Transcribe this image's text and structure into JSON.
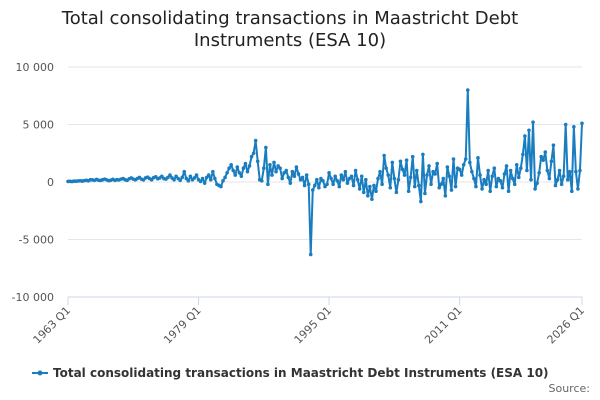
{
  "chart_data": {
    "type": "line",
    "title": "Total consolidating transactions in Maastricht Debt Instruments (ESA 10)",
    "source": "Source:",
    "categories": [
      "1963 Q1",
      null,
      null,
      null,
      null,
      null,
      null,
      null,
      null,
      null,
      null,
      null,
      null,
      null,
      null,
      null,
      null,
      null,
      null,
      null,
      null,
      null,
      null,
      null,
      null,
      null,
      null,
      null,
      null,
      null,
      null,
      null,
      null,
      null,
      null,
      null,
      null,
      null,
      null,
      null,
      null,
      null,
      null,
      null,
      null,
      null,
      null,
      null,
      null,
      null,
      null,
      null,
      null,
      null,
      null,
      null,
      null,
      null,
      null,
      null,
      null,
      null,
      null,
      null,
      "1979 Q1",
      null,
      null,
      null,
      null,
      null,
      null,
      null,
      null,
      null,
      null,
      null,
      null,
      null,
      null,
      null,
      null,
      null,
      null,
      null,
      null,
      null,
      null,
      null,
      null,
      null,
      null,
      null,
      null,
      null,
      null,
      null,
      null,
      null,
      null,
      null,
      null,
      null,
      null,
      null,
      null,
      null,
      null,
      null,
      null,
      null,
      null,
      null,
      null,
      null,
      null,
      null,
      null,
      null,
      null,
      null,
      null,
      null,
      null,
      null,
      null,
      null,
      null,
      null,
      "1995 Q1",
      null,
      null,
      null,
      null,
      null,
      null,
      null,
      null,
      null,
      null,
      null,
      null,
      null,
      null,
      null,
      null,
      null,
      null,
      null,
      null,
      null,
      null,
      null,
      null,
      null,
      null,
      null,
      null,
      null,
      null,
      null,
      null,
      null,
      null,
      null,
      null,
      null,
      null,
      null,
      null,
      null,
      null,
      null,
      null,
      null,
      null,
      null,
      null,
      null,
      null,
      null,
      null,
      null,
      null,
      null,
      null,
      null,
      null,
      null,
      null,
      null,
      null,
      null,
      "2011 Q1",
      null,
      null,
      null,
      null,
      null,
      null,
      null,
      null,
      null,
      null,
      null,
      null,
      null,
      null,
      null,
      null,
      null,
      null,
      null,
      null,
      null,
      null,
      null,
      null,
      null,
      null,
      null,
      null,
      null,
      null,
      null,
      null,
      null,
      null,
      null,
      null,
      null,
      null,
      null,
      null,
      null,
      null,
      null,
      null,
      null,
      null,
      null,
      null,
      null,
      null,
      null,
      null,
      null,
      null,
      null,
      null,
      null,
      null,
      null,
      "2026 Q1"
    ],
    "series": [
      {
        "name": "Total consolidating transactions in Maastricht Debt Instruments (ESA 10)",
        "color": "#1a7dbf",
        "values": [
          50,
          60,
          40,
          80,
          70,
          90,
          100,
          80,
          120,
          150,
          100,
          200,
          180,
          150,
          220,
          160,
          140,
          200,
          250,
          180,
          120,
          160,
          230,
          150,
          200,
          180,
          250,
          300,
          200,
          150,
          280,
          350,
          250,
          200,
          300,
          400,
          250,
          180,
          350,
          420,
          300,
          200,
          380,
          450,
          280,
          350,
          500,
          300,
          250,
          400,
          600,
          350,
          200,
          500,
          300,
          150,
          400,
          900,
          300,
          100,
          500,
          200,
          350,
          600,
          200,
          50,
          300,
          -100,
          400,
          600,
          200,
          900,
          300,
          -200,
          -300,
          -400,
          100,
          400,
          800,
          1200,
          1500,
          1000,
          600,
          1300,
          800,
          500,
          1200,
          1600,
          900,
          1400,
          2200,
          2500,
          3600,
          1800,
          200,
          100,
          1200,
          3000,
          -200,
          1500,
          600,
          1700,
          900,
          1400,
          1200,
          300,
          800,
          1000,
          400,
          -100,
          900,
          500,
          1300,
          700,
          200,
          400,
          -300,
          600,
          -200,
          -6300,
          -700,
          -300,
          200,
          -500,
          300,
          100,
          -400,
          -200,
          800,
          300,
          -200,
          500,
          100,
          -400,
          600,
          200,
          900,
          -100,
          300,
          500,
          -300,
          1000,
          200,
          -600,
          500,
          -900,
          200,
          -1200,
          -400,
          -1500,
          -300,
          -800,
          300,
          900,
          -200,
          2300,
          1200,
          600,
          -500,
          1700,
          300,
          -900,
          200,
          1800,
          1100,
          600,
          1900,
          -800,
          400,
          2200,
          -400,
          1000,
          -300,
          -1700,
          2400,
          -1000,
          600,
          1400,
          -200,
          900,
          700,
          1600,
          -500,
          -200,
          300,
          -1200,
          1300,
          500,
          -700,
          2000,
          -400,
          1200,
          1100,
          600,
          1500,
          2000,
          8000,
          1700,
          900,
          300,
          -400,
          2100,
          600,
          -600,
          200,
          -200,
          1000,
          -800,
          500,
          1200,
          -400,
          300,
          100,
          -500,
          700,
          1400,
          -800,
          1000,
          300,
          -200,
          1500,
          400,
          1200,
          2400,
          4000,
          1000,
          4500,
          200,
          5200,
          -600,
          -100,
          800,
          2200,
          1900,
          2600,
          1000,
          300,
          1800,
          3200,
          -300,
          200,
          1000,
          -200,
          500,
          5000,
          200,
          900,
          -800,
          4800,
          900,
          -600,
          1000,
          5100
        ]
      }
    ],
    "ylim": [
      -10000,
      10000
    ],
    "yticks": [
      {
        "value": -10000,
        "label": "-10 000"
      },
      {
        "value": -5000,
        "label": "-5 000"
      },
      0,
      {
        "value": 5000,
        "label": "5 000"
      },
      {
        "value": 10000,
        "label": "10 000"
      }
    ],
    "grid": true
  }
}
